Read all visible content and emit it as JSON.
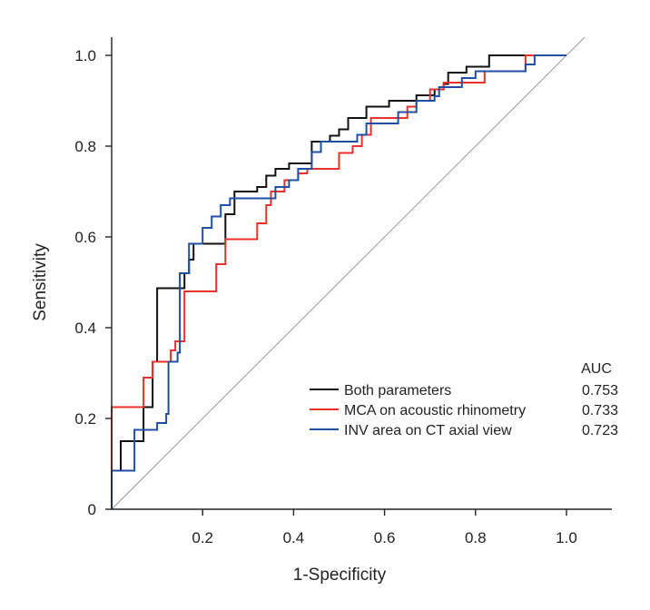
{
  "chart_data": {
    "type": "line",
    "title": "",
    "xlabel": "1-Specificity",
    "ylabel": "Sensitivity",
    "xlim": [
      0,
      1.1
    ],
    "ylim": [
      0,
      1.04
    ],
    "x_ticks": [
      {
        "value": 0.2,
        "label": "0.2"
      },
      {
        "value": 0.4,
        "label": "0.4"
      },
      {
        "value": 0.6,
        "label": "0.6"
      },
      {
        "value": 0.8,
        "label": "0.8"
      },
      {
        "value": 1.0,
        "label": "1.0"
      }
    ],
    "y_ticks": [
      {
        "value": 0,
        "label": "0"
      },
      {
        "value": 0.2,
        "label": "0.2"
      },
      {
        "value": 0.4,
        "label": "0.4"
      },
      {
        "value": 0.6,
        "label": "0.6"
      },
      {
        "value": 0.8,
        "label": "0.8"
      },
      {
        "value": 1.0,
        "label": "1.0"
      }
    ],
    "reference_line": {
      "name": "chance",
      "points": [
        [
          0,
          0
        ],
        [
          1.04,
          1.04
        ]
      ],
      "color": "#9a9a9a"
    },
    "legend_header": "AUC",
    "legend_position": "bottom-right",
    "series": [
      {
        "name": "Both parameters",
        "auc": "0.753",
        "color": "#111111",
        "points": [
          [
            0,
            0
          ],
          [
            0,
            0.085
          ],
          [
            0.02,
            0.085
          ],
          [
            0.02,
            0.15
          ],
          [
            0.07,
            0.15
          ],
          [
            0.07,
            0.225
          ],
          [
            0.09,
            0.225
          ],
          [
            0.09,
            0.325
          ],
          [
            0.1,
            0.325
          ],
          [
            0.1,
            0.487
          ],
          [
            0.16,
            0.487
          ],
          [
            0.16,
            0.52
          ],
          [
            0.17,
            0.52
          ],
          [
            0.17,
            0.55
          ],
          [
            0.18,
            0.55
          ],
          [
            0.18,
            0.585
          ],
          [
            0.25,
            0.585
          ],
          [
            0.25,
            0.65
          ],
          [
            0.27,
            0.65
          ],
          [
            0.27,
            0.7
          ],
          [
            0.32,
            0.7
          ],
          [
            0.32,
            0.71
          ],
          [
            0.34,
            0.71
          ],
          [
            0.34,
            0.735
          ],
          [
            0.36,
            0.735
          ],
          [
            0.36,
            0.75
          ],
          [
            0.39,
            0.75
          ],
          [
            0.39,
            0.762
          ],
          [
            0.44,
            0.762
          ],
          [
            0.44,
            0.81
          ],
          [
            0.48,
            0.81
          ],
          [
            0.48,
            0.823
          ],
          [
            0.5,
            0.823
          ],
          [
            0.5,
            0.837
          ],
          [
            0.52,
            0.837
          ],
          [
            0.52,
            0.862
          ],
          [
            0.56,
            0.862
          ],
          [
            0.56,
            0.887
          ],
          [
            0.61,
            0.887
          ],
          [
            0.61,
            0.9
          ],
          [
            0.67,
            0.9
          ],
          [
            0.67,
            0.912
          ],
          [
            0.71,
            0.912
          ],
          [
            0.71,
            0.925
          ],
          [
            0.73,
            0.925
          ],
          [
            0.73,
            0.937
          ],
          [
            0.74,
            0.937
          ],
          [
            0.74,
            0.962
          ],
          [
            0.78,
            0.962
          ],
          [
            0.78,
            0.975
          ],
          [
            0.83,
            0.975
          ],
          [
            0.83,
            1
          ],
          [
            1,
            1
          ]
        ]
      },
      {
        "name": "MCA on acoustic rhinometry",
        "auc": "0.733",
        "color": "#e8302c",
        "points": [
          [
            0,
            0
          ],
          [
            0,
            0.225
          ],
          [
            0.07,
            0.225
          ],
          [
            0.07,
            0.29
          ],
          [
            0.09,
            0.29
          ],
          [
            0.09,
            0.325
          ],
          [
            0.13,
            0.325
          ],
          [
            0.13,
            0.35
          ],
          [
            0.14,
            0.35
          ],
          [
            0.14,
            0.37
          ],
          [
            0.16,
            0.37
          ],
          [
            0.16,
            0.48
          ],
          [
            0.23,
            0.48
          ],
          [
            0.23,
            0.54
          ],
          [
            0.25,
            0.54
          ],
          [
            0.25,
            0.595
          ],
          [
            0.32,
            0.595
          ],
          [
            0.32,
            0.63
          ],
          [
            0.34,
            0.63
          ],
          [
            0.34,
            0.67
          ],
          [
            0.35,
            0.67
          ],
          [
            0.35,
            0.7
          ],
          [
            0.38,
            0.7
          ],
          [
            0.38,
            0.725
          ],
          [
            0.41,
            0.725
          ],
          [
            0.41,
            0.74
          ],
          [
            0.43,
            0.74
          ],
          [
            0.43,
            0.75
          ],
          [
            0.5,
            0.75
          ],
          [
            0.5,
            0.785
          ],
          [
            0.53,
            0.785
          ],
          [
            0.53,
            0.8
          ],
          [
            0.55,
            0.8
          ],
          [
            0.55,
            0.825
          ],
          [
            0.57,
            0.825
          ],
          [
            0.57,
            0.862
          ],
          [
            0.65,
            0.862
          ],
          [
            0.65,
            0.887
          ],
          [
            0.67,
            0.887
          ],
          [
            0.67,
            0.9
          ],
          [
            0.7,
            0.9
          ],
          [
            0.7,
            0.925
          ],
          [
            0.73,
            0.925
          ],
          [
            0.73,
            0.94
          ],
          [
            0.82,
            0.94
          ],
          [
            0.82,
            0.965
          ],
          [
            0.91,
            0.965
          ],
          [
            0.91,
            1
          ],
          [
            1,
            1
          ]
        ]
      },
      {
        "name": "INV area on CT axial view",
        "auc": "0.723",
        "color": "#1f4fa3",
        "points": [
          [
            0,
            0
          ],
          [
            0,
            0.085
          ],
          [
            0.05,
            0.085
          ],
          [
            0.05,
            0.175
          ],
          [
            0.1,
            0.175
          ],
          [
            0.1,
            0.19
          ],
          [
            0.12,
            0.19
          ],
          [
            0.12,
            0.21
          ],
          [
            0.125,
            0.21
          ],
          [
            0.125,
            0.325
          ],
          [
            0.145,
            0.325
          ],
          [
            0.145,
            0.345
          ],
          [
            0.15,
            0.345
          ],
          [
            0.15,
            0.52
          ],
          [
            0.17,
            0.52
          ],
          [
            0.17,
            0.585
          ],
          [
            0.2,
            0.585
          ],
          [
            0.2,
            0.62
          ],
          [
            0.22,
            0.62
          ],
          [
            0.22,
            0.645
          ],
          [
            0.24,
            0.645
          ],
          [
            0.24,
            0.67
          ],
          [
            0.26,
            0.67
          ],
          [
            0.26,
            0.685
          ],
          [
            0.36,
            0.685
          ],
          [
            0.36,
            0.71
          ],
          [
            0.39,
            0.71
          ],
          [
            0.39,
            0.725
          ],
          [
            0.41,
            0.725
          ],
          [
            0.41,
            0.75
          ],
          [
            0.44,
            0.75
          ],
          [
            0.44,
            0.787
          ],
          [
            0.46,
            0.787
          ],
          [
            0.46,
            0.81
          ],
          [
            0.54,
            0.81
          ],
          [
            0.54,
            0.825
          ],
          [
            0.56,
            0.825
          ],
          [
            0.56,
            0.85
          ],
          [
            0.63,
            0.85
          ],
          [
            0.63,
            0.875
          ],
          [
            0.67,
            0.875
          ],
          [
            0.67,
            0.9
          ],
          [
            0.71,
            0.9
          ],
          [
            0.71,
            0.91
          ],
          [
            0.72,
            0.91
          ],
          [
            0.72,
            0.93
          ],
          [
            0.77,
            0.93
          ],
          [
            0.77,
            0.95
          ],
          [
            0.8,
            0.95
          ],
          [
            0.8,
            0.965
          ],
          [
            0.91,
            0.965
          ],
          [
            0.91,
            0.98
          ],
          [
            0.93,
            0.98
          ],
          [
            0.93,
            1
          ],
          [
            1,
            1
          ]
        ]
      }
    ]
  }
}
